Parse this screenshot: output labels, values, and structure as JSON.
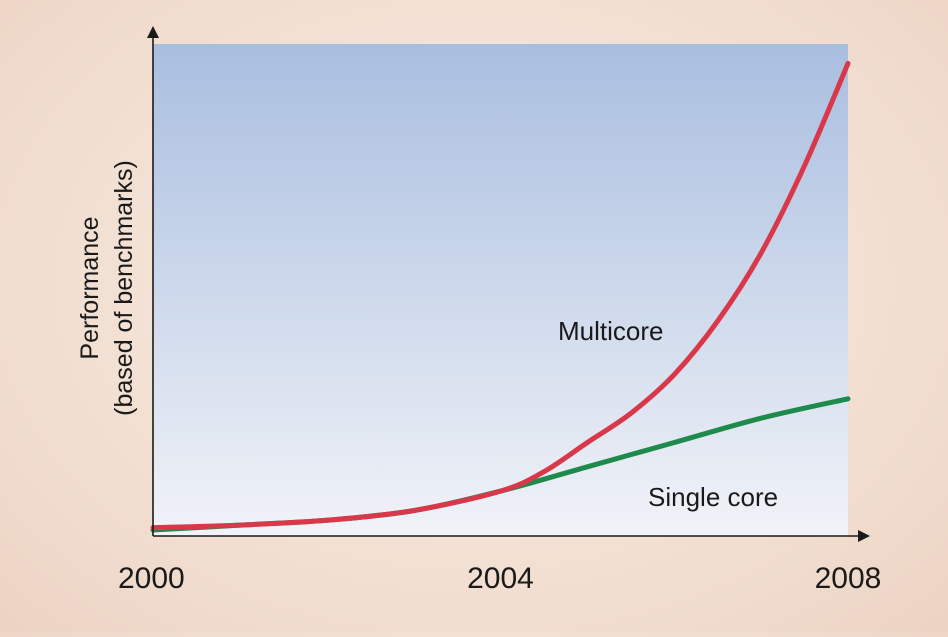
{
  "chart_data": {
    "type": "line",
    "title": "",
    "xlabel": "",
    "ylabel_lines": [
      "Performance",
      "(based of benchmarks)"
    ],
    "x_ticks": [
      "2000",
      "2004",
      "2008"
    ],
    "xlim": [
      2000,
      2008
    ],
    "ylim": [
      0,
      100
    ],
    "y_tick_labels": "none",
    "grid": false,
    "legend": "inline labels",
    "series": [
      {
        "name": "Multicore",
        "color": "#d9384a",
        "x": [
          2000,
          2001,
          2002,
          2003,
          2004,
          2004.5,
          2005,
          2005.5,
          2006,
          2006.5,
          2007,
          2007.5,
          2008
        ],
        "y": [
          0.5,
          1,
          2,
          4,
          8,
          12,
          18,
          24,
          32,
          43,
          57,
          75,
          96
        ]
      },
      {
        "name": "Single core",
        "color": "#1e8a4c",
        "x": [
          2000,
          2001,
          2002,
          2003,
          2004,
          2005,
          2006,
          2007,
          2008
        ],
        "y": [
          0,
          1,
          2,
          4,
          8,
          13,
          18,
          23,
          27
        ]
      }
    ]
  },
  "colors": {
    "plot_bg_top": "#a9bedf",
    "plot_bg_bottom": "#f1f3f8",
    "axis": "#1a1a1a"
  }
}
